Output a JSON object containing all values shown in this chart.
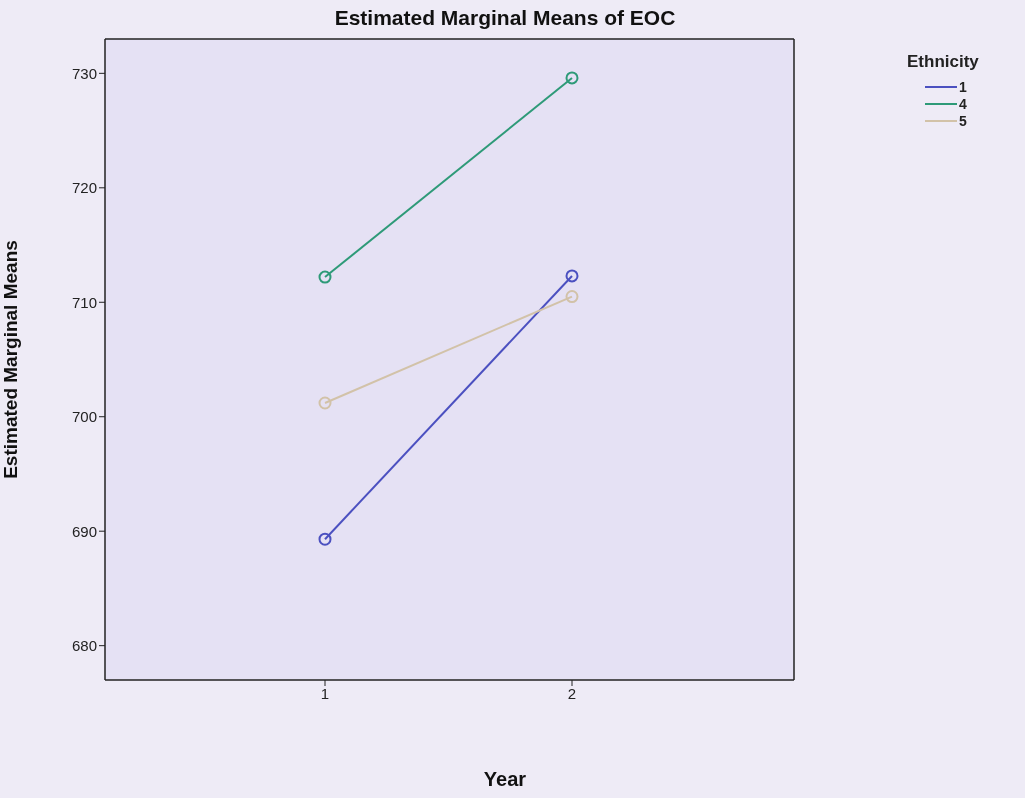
{
  "chart_data": {
    "type": "line",
    "title": "Estimated Marginal Means of EOC",
    "xlabel": "Year",
    "ylabel": "Estimated Marginal Means",
    "legend_title": "Ethnicity",
    "categories": [
      "1",
      "2"
    ],
    "series": [
      {
        "name": "1",
        "color": "#4b50c0",
        "values": [
          689.3,
          712.3
        ]
      },
      {
        "name": "4",
        "color": "#2e9a78",
        "values": [
          712.2,
          729.6
        ]
      },
      {
        "name": "5",
        "color": "#d2c2a8",
        "values": [
          701.2,
          710.5
        ]
      }
    ],
    "ylim": [
      677,
      733
    ],
    "yticks": [
      680,
      690,
      700,
      710,
      720,
      730
    ],
    "grid": false,
    "legend": "top right",
    "marker": "circle",
    "line_style": "solid"
  }
}
